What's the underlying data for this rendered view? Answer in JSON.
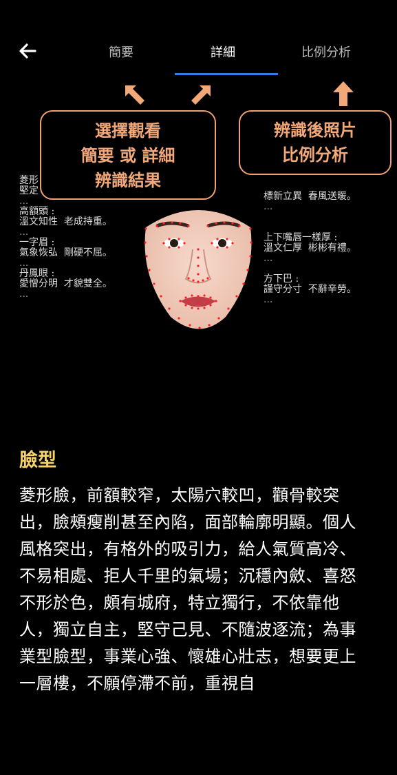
{
  "header": {
    "back_icon": "arrow-left-icon",
    "tabs": [
      {
        "label": "簡要",
        "active": false
      },
      {
        "label": "詳細",
        "active": true
      },
      {
        "label": "比例分析",
        "active": false
      }
    ],
    "accent_color": "#2f7fe3"
  },
  "hints": {
    "left_lines": [
      "選擇觀看",
      "簡要 或 詳細",
      "辨識結果"
    ],
    "right_lines": [
      "辨識後照片",
      "比例分析"
    ],
    "color": "#f3a877"
  },
  "traits_left": [
    {
      "title": "菱形",
      "desc": "堅定"
    },
    {
      "title": "高額頭 :",
      "desc": "溫文知性  老成持重。"
    },
    {
      "title": "一字眉 :",
      "desc": "氣象恢弘  剛硬不屈。"
    },
    {
      "title": "丹鳳眼 :",
      "desc": "愛憎分明  才貌雙全。"
    }
  ],
  "traits_right": [
    {
      "title": "",
      "desc": "標新立異  春風送暖。"
    },
    {
      "title": "上下嘴唇一樣厚 :",
      "desc": "溫文仁厚  彬彬有禮。"
    },
    {
      "title": "方下巴 :",
      "desc": "謹守分寸  不辭辛勞。"
    }
  ],
  "ellipsis": "...",
  "section": {
    "title": "臉型",
    "body": "菱形臉，前額較窄，太陽穴較凹，顴骨較突出，臉頰瘦削甚至內陷，面部輪廓明顯。個人風格突出，有格外的吸引力，給人氣質高冷、不易相處、拒人千里的氣場；沉穩內斂、喜怒不形於色，頗有城府，特立獨行，不依靠他人，獨立自主，堅守己見、不隨波逐流；為事業型臉型，事業心強、懷雄心壯志，想要更上一層樓，不願停滯不前，重視自",
    "title_color": "#f5d36a"
  }
}
